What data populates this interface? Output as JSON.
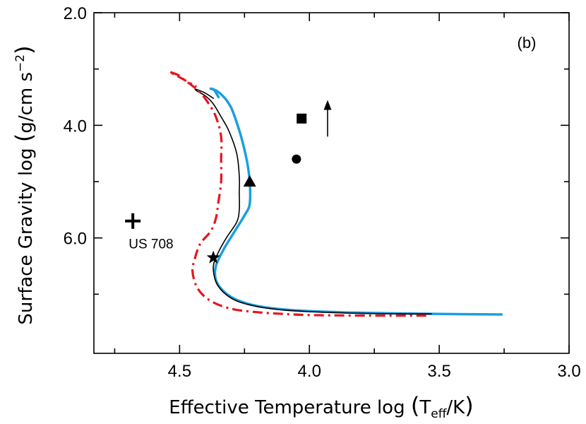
{
  "chart_data": {
    "type": "line",
    "panel_label": "(b)",
    "xlabel": {
      "prefix": "Effective Temperature  log ",
      "main": "T",
      "subscript": "eff",
      "suffix": "/K"
    },
    "ylabel": {
      "prefix": "Surface Gravity  log ",
      "unit": "g/cm s",
      "superscript": "−2"
    },
    "xlim": [
      4.83,
      3.0
    ],
    "ylim": [
      2.0,
      8.05
    ],
    "x_ticks": [
      {
        "value": 4.5,
        "label": "4.5"
      },
      {
        "value": 4.0,
        "label": "4.0"
      },
      {
        "value": 3.5,
        "label": "3.5"
      },
      {
        "value": 3.0,
        "label": "3.0"
      }
    ],
    "x_minor_ticks": [
      4.75,
      4.25,
      3.75,
      3.25
    ],
    "y_ticks": [
      {
        "value": 2.0,
        "label": "2.0"
      },
      {
        "value": 4.0,
        "label": "4.0"
      },
      {
        "value": 6.0,
        "label": "6.0"
      }
    ],
    "y_minor_ticks": [
      3.0,
      5.0,
      7.0
    ],
    "colors": {
      "blue": "#1a9fe0",
      "red": "#e8141e",
      "black": "#000000"
    },
    "series": [
      {
        "name": "blue-track",
        "color": "#1a9fe0",
        "width": 3.5,
        "dash": "",
        "points": [
          [
            3.26,
            7.36
          ],
          [
            3.5,
            7.35
          ],
          [
            3.8,
            7.33
          ],
          [
            4.0,
            7.3
          ],
          [
            4.1,
            7.27
          ],
          [
            4.2,
            7.21
          ],
          [
            4.28,
            7.1
          ],
          [
            4.33,
            6.95
          ],
          [
            4.36,
            6.75
          ],
          [
            4.36,
            6.5
          ],
          [
            4.33,
            6.2
          ],
          [
            4.29,
            5.9
          ],
          [
            4.25,
            5.6
          ],
          [
            4.23,
            5.4
          ],
          [
            4.23,
            5.0
          ],
          [
            4.24,
            4.65
          ],
          [
            4.26,
            4.25
          ],
          [
            4.28,
            3.95
          ],
          [
            4.3,
            3.7
          ],
          [
            4.32,
            3.55
          ],
          [
            4.34,
            3.45
          ],
          [
            4.36,
            3.38
          ],
          [
            4.38,
            3.35
          ],
          [
            4.37,
            3.36
          ],
          [
            4.36,
            3.42
          ],
          [
            4.35,
            3.5
          ]
        ]
      },
      {
        "name": "black-track",
        "color": "#000000",
        "width": 1.6,
        "dash": "",
        "points": [
          [
            3.53,
            7.35
          ],
          [
            3.8,
            7.34
          ],
          [
            4.0,
            7.31
          ],
          [
            4.1,
            7.28
          ],
          [
            4.2,
            7.22
          ],
          [
            4.28,
            7.12
          ],
          [
            4.33,
            6.97
          ],
          [
            4.36,
            6.78
          ],
          [
            4.37,
            6.5
          ],
          [
            4.35,
            6.25
          ],
          [
            4.32,
            6.0
          ],
          [
            4.28,
            5.72
          ],
          [
            4.27,
            5.5
          ],
          [
            4.27,
            5.2
          ],
          [
            4.27,
            4.9
          ],
          [
            4.28,
            4.5
          ],
          [
            4.31,
            4.1
          ],
          [
            4.34,
            3.85
          ],
          [
            4.37,
            3.62
          ],
          [
            4.4,
            3.48
          ],
          [
            4.43,
            3.4
          ],
          [
            4.44,
            3.36
          ],
          [
            4.43,
            3.37
          ],
          [
            4.4,
            3.43
          ],
          [
            4.37,
            3.52
          ]
        ]
      },
      {
        "name": "red-track",
        "color": "#e8141e",
        "width": 3.2,
        "dash": "14 6 3 6",
        "points": [
          [
            3.55,
            7.38
          ],
          [
            3.8,
            7.38
          ],
          [
            4.0,
            7.37
          ],
          [
            4.1,
            7.35
          ],
          [
            4.2,
            7.32
          ],
          [
            4.3,
            7.26
          ],
          [
            4.38,
            7.12
          ],
          [
            4.43,
            6.9
          ],
          [
            4.45,
            6.6
          ],
          [
            4.44,
            6.35
          ],
          [
            4.42,
            6.1
          ],
          [
            4.38,
            5.88
          ],
          [
            4.36,
            5.65
          ],
          [
            4.35,
            5.35
          ],
          [
            4.34,
            5.0
          ],
          [
            4.34,
            4.6
          ],
          [
            4.34,
            4.2
          ],
          [
            4.36,
            3.85
          ],
          [
            4.39,
            3.6
          ],
          [
            4.42,
            3.42
          ],
          [
            4.45,
            3.3
          ],
          [
            4.48,
            3.2
          ],
          [
            4.5,
            3.12
          ],
          [
            4.52,
            3.08
          ],
          [
            4.54,
            3.05
          ],
          [
            4.51,
            3.12
          ],
          [
            4.46,
            3.25
          ],
          [
            4.44,
            3.3
          ],
          [
            4.44,
            3.3
          ]
        ]
      }
    ],
    "markers": [
      {
        "name": "star-marker",
        "shape": "star",
        "x": 4.37,
        "y": 6.35
      },
      {
        "name": "triangle-marker",
        "shape": "triangle",
        "x": 4.23,
        "y": 5.0
      },
      {
        "name": "square-marker",
        "shape": "square",
        "x": 4.03,
        "y": 3.88
      },
      {
        "name": "circle-marker",
        "shape": "circle",
        "x": 4.05,
        "y": 4.6
      },
      {
        "name": "plus-marker",
        "shape": "plus",
        "x": 4.68,
        "y": 5.7
      }
    ],
    "annotations": [
      {
        "name": "us708-label",
        "text": "US 708",
        "x": 4.61,
        "y": 6.1
      }
    ],
    "arrow": {
      "x": 3.93,
      "y_from": 4.2,
      "y_to": 3.55
    }
  }
}
